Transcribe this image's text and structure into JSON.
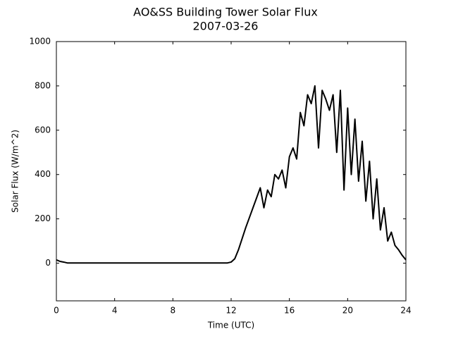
{
  "chart_data": {
    "type": "line",
    "title": "AO&SS Building Tower Solar Flux",
    "subtitle": "2007-03-26",
    "x_label": "Time (UTC)",
    "y_label": "Solar Flux (W/m^2)",
    "xlim": [
      0,
      24
    ],
    "xticks": [
      0,
      4,
      8,
      12,
      16,
      20,
      24
    ],
    "ylim": [
      -170,
      1000
    ],
    "yticks": [
      0,
      200,
      400,
      600,
      800,
      1000
    ],
    "grid": false,
    "series": [
      {
        "name": "Solar Flux",
        "color": "#000000",
        "x": [
          0,
          0.25,
          0.5,
          0.75,
          1,
          1.25,
          1.5,
          1.75,
          2,
          2.25,
          2.5,
          2.75,
          3,
          3.25,
          3.5,
          3.75,
          4,
          4.25,
          4.5,
          4.75,
          5,
          5.25,
          5.5,
          5.75,
          6,
          6.25,
          6.5,
          6.75,
          7,
          7.25,
          7.5,
          7.75,
          8,
          8.25,
          8.5,
          8.75,
          9,
          9.25,
          9.5,
          9.75,
          10,
          10.25,
          10.5,
          10.75,
          11,
          11.25,
          11.5,
          11.75,
          12,
          12.25,
          12.5,
          12.75,
          13,
          13.25,
          13.5,
          13.75,
          14,
          14.25,
          14.5,
          14.75,
          15,
          15.25,
          15.5,
          15.75,
          16,
          16.25,
          16.5,
          16.75,
          17,
          17.25,
          17.5,
          17.75,
          18,
          18.25,
          18.5,
          18.75,
          19,
          19.25,
          19.5,
          19.75,
          20,
          20.25,
          20.5,
          20.75,
          21,
          21.25,
          21.5,
          21.75,
          22,
          22.25,
          22.5,
          22.75,
          23,
          23.25,
          23.5,
          23.75,
          24
        ],
        "values": [
          15,
          8,
          5,
          1,
          1,
          1,
          1,
          1,
          1,
          1,
          1,
          1,
          1,
          1,
          1,
          1,
          1,
          1,
          1,
          1,
          1,
          1,
          1,
          1,
          1,
          1,
          1,
          1,
          1,
          1,
          1,
          1,
          1,
          1,
          1,
          1,
          1,
          1,
          1,
          1,
          1,
          1,
          1,
          1,
          1,
          1,
          1,
          1,
          5,
          20,
          60,
          110,
          160,
          205,
          250,
          295,
          340,
          250,
          330,
          300,
          400,
          380,
          420,
          340,
          480,
          520,
          470,
          680,
          620,
          760,
          720,
          800,
          520,
          780,
          740,
          690,
          760,
          500,
          780,
          330,
          700,
          400,
          650,
          370,
          550,
          280,
          460,
          200,
          380,
          150,
          250,
          100,
          140,
          80,
          60,
          35,
          15
        ]
      }
    ]
  }
}
